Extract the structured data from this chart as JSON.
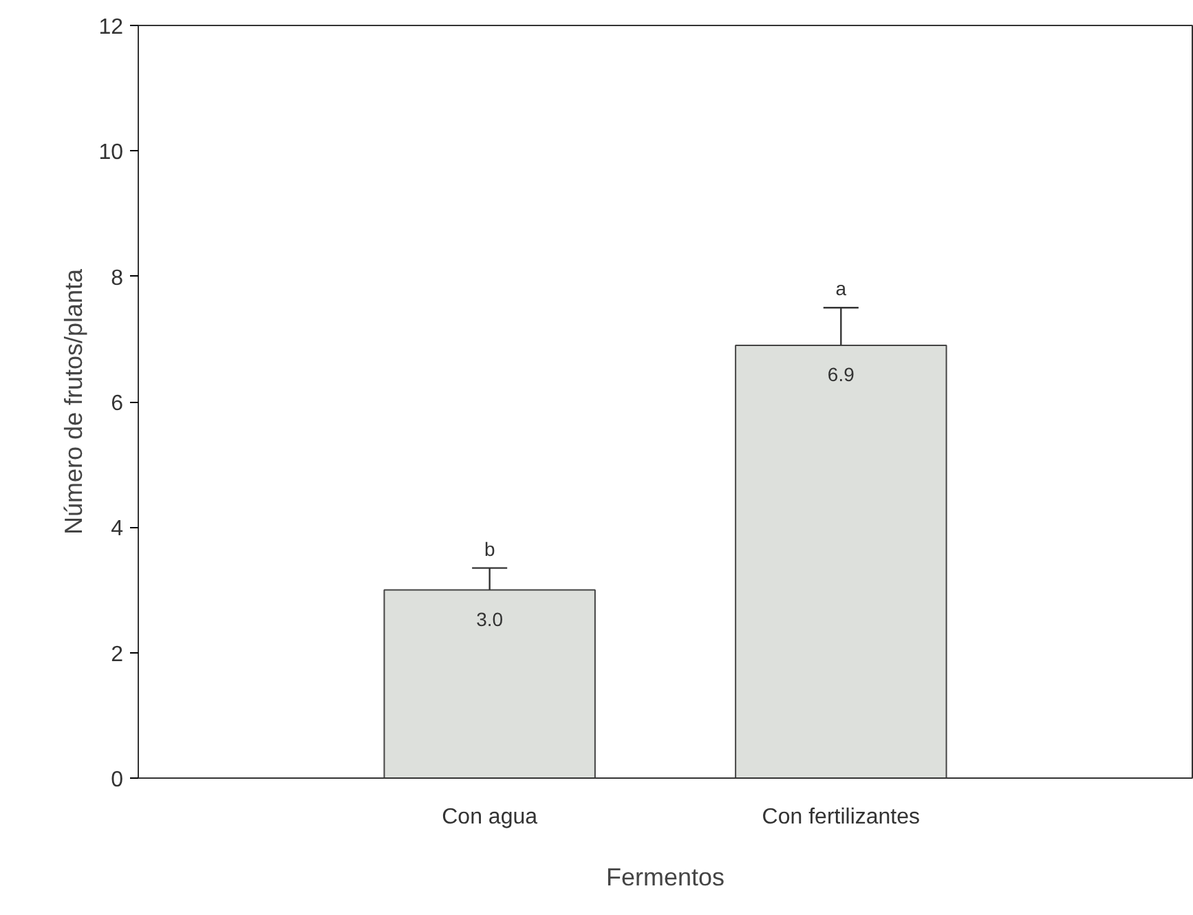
{
  "chart_data": {
    "type": "bar",
    "xlabel": "Fermentos",
    "ylabel": "Número de frutos/planta",
    "categories": [
      "Con agua",
      "Con fertilizantes"
    ],
    "values": [
      3.0,
      6.9
    ],
    "value_labels": [
      "3.0",
      "6.9"
    ],
    "errors": [
      [
        3.0,
        3.35
      ],
      [
        6.9,
        7.5
      ]
    ],
    "color": "#dde0dc",
    "ylim": [
      0,
      12
    ],
    "yticks": [
      0,
      2,
      4,
      6,
      8,
      10,
      12
    ],
    "annotations": [
      {
        "text": "b",
        "x": "Con agua",
        "y": 3.35
      },
      {
        "text": "a",
        "x": "Con fertilizantes",
        "y": 7.5
      }
    ],
    "grid": false
  }
}
